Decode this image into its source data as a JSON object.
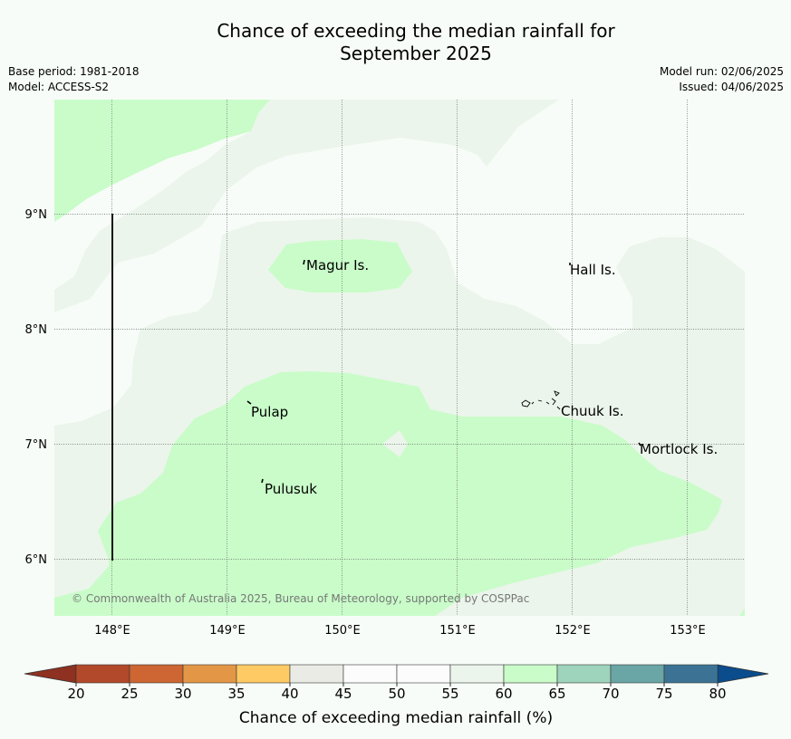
{
  "title_line1": "Chance of exceeding the median rainfall for",
  "title_line2": "September 2025",
  "base_period": "Base period: 1981-2018",
  "model": "Model: ACCESS-S2",
  "model_run": "Model run: 02/06/2025",
  "issued": "Issued: 04/06/2025",
  "copyright": "© Commonwealth of Australia 2025, Bureau of Meteorology, supported by COSPPac",
  "map": {
    "lon_range": [
      147.5,
      153.5
    ],
    "lat_range": [
      5.5,
      10.0
    ],
    "lon_ticks": [
      "148°E",
      "149°E",
      "150°E",
      "151°E",
      "152°E",
      "153°E"
    ],
    "lat_ticks": [
      "6°N",
      "7°N",
      "8°N",
      "9°N"
    ],
    "places": [
      {
        "name": "Magur Is."
      },
      {
        "name": "Hall Is."
      },
      {
        "name": "Pulap"
      },
      {
        "name": "Chuuk Is."
      },
      {
        "name": "Mortlock Is."
      },
      {
        "name": "Pulusuk"
      }
    ],
    "colors": {
      "band_45_55": "#f7fcf8",
      "band_55_60": "#ebf5eb",
      "band_60_65": "#c9fcc9"
    }
  },
  "colorbar": {
    "label": "Chance of exceeding median rainfall (%)",
    "ticks": [
      "20",
      "25",
      "30",
      "35",
      "40",
      "45",
      "50",
      "55",
      "60",
      "65",
      "70",
      "75",
      "80"
    ],
    "colors": [
      "#b2492a",
      "#cd6633",
      "#e39746",
      "#fdca63",
      "#ebebe6",
      "#fcfcfc",
      "#fcfcfc",
      "#ebf5eb",
      "#c9fcc9",
      "#9ed3bc",
      "#6aa6a6",
      "#3c7394"
    ],
    "under_color": "#8e3120",
    "over_color": "#0a4c8c"
  }
}
